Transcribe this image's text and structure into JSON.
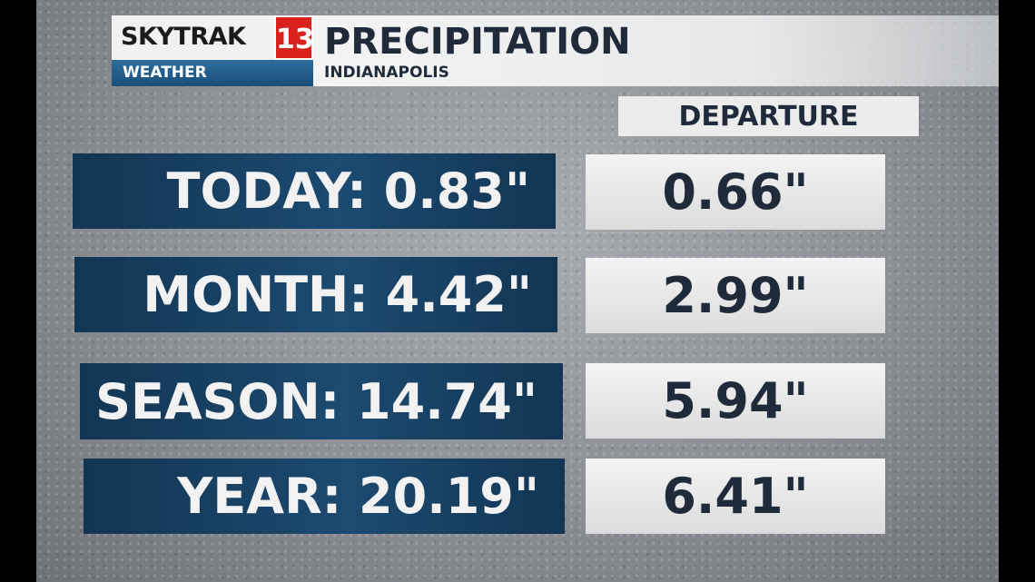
{
  "header": {
    "brand": "SKYTRAK",
    "channel": "13",
    "section": "WEATHER",
    "title": "PRECIPITATION",
    "location": "INDIANAPOLIS"
  },
  "table": {
    "column_header": "DEPARTURE",
    "rows": [
      [
        "TODAY: 0.83\"",
        "0.66\""
      ],
      [
        "MONTH: 4.42\"",
        "2.99\""
      ],
      [
        "SEASON: 14.74\"",
        "5.94\""
      ],
      [
        "YEAR: 20.19\"",
        "6.41\""
      ]
    ]
  }
}
